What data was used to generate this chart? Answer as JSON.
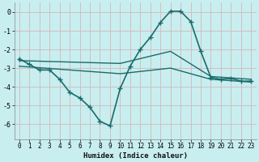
{
  "xlabel": "Humidex (Indice chaleur)",
  "bg_color": "#c8eef0",
  "grid_color": "#e8e8e8",
  "line_color": "#1a6b6b",
  "xlim": [
    -0.5,
    23.5
  ],
  "ylim": [
    -6.8,
    0.5
  ],
  "yticks": [
    0,
    -1,
    -2,
    -3,
    -4,
    -5,
    -6
  ],
  "xticks": [
    0,
    1,
    2,
    3,
    4,
    5,
    6,
    7,
    8,
    9,
    10,
    11,
    12,
    13,
    14,
    15,
    16,
    17,
    18,
    19,
    20,
    21,
    22,
    23
  ],
  "series": [
    {
      "x": [
        0,
        1,
        2,
        3,
        4,
        5,
        6,
        7,
        8,
        9,
        10,
        11,
        12,
        13,
        14,
        15,
        16,
        17,
        18,
        19,
        20,
        21,
        22,
        23
      ],
      "y": [
        -2.5,
        -2.8,
        -3.1,
        -3.1,
        -3.6,
        -4.3,
        -4.6,
        -5.1,
        -5.85,
        -6.1,
        -4.1,
        -2.9,
        -2.0,
        -1.35,
        -0.55,
        0.05,
        0.05,
        -0.5,
        -2.1,
        -3.5,
        -3.6,
        -3.55,
        -3.7,
        -3.7
      ],
      "marker": "+",
      "markersize": 4,
      "linewidth": 1.2,
      "zorder": 3
    },
    {
      "x": [
        0,
        10,
        15,
        19,
        23
      ],
      "y": [
        -2.6,
        -2.75,
        -2.1,
        -3.45,
        -3.6
      ],
      "marker": null,
      "linewidth": 1.0,
      "zorder": 2
    },
    {
      "x": [
        0,
        10,
        15,
        19,
        23
      ],
      "y": [
        -2.9,
        -3.3,
        -3.0,
        -3.6,
        -3.75
      ],
      "marker": null,
      "linewidth": 1.0,
      "zorder": 2
    }
  ]
}
